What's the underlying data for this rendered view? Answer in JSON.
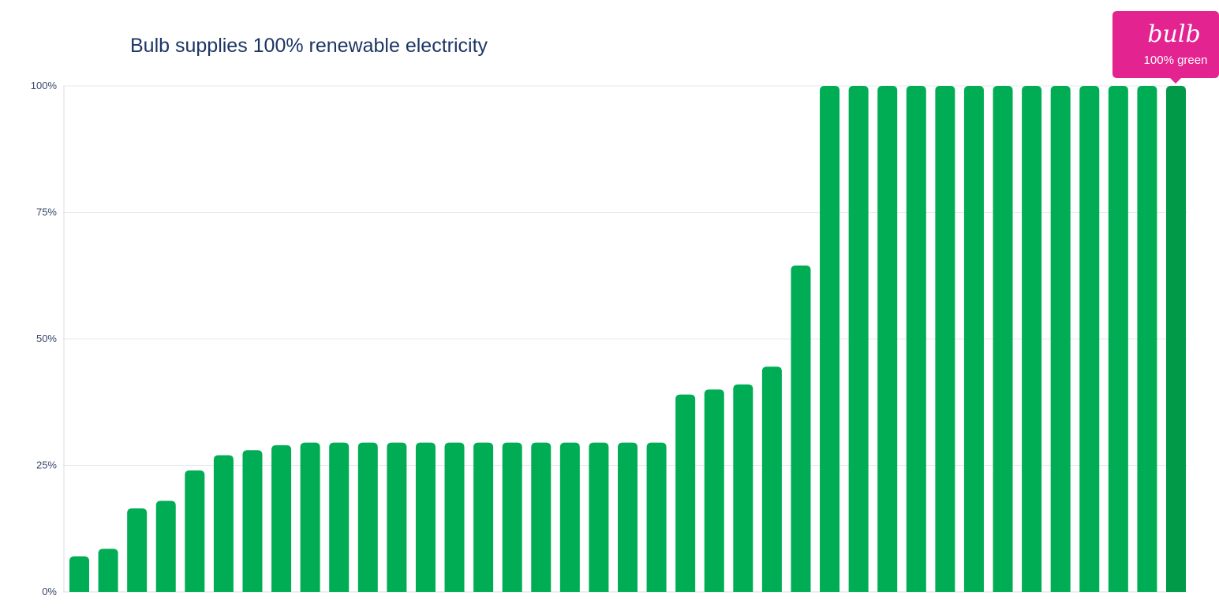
{
  "chart_data": {
    "type": "bar",
    "title": "Bulb supplies 100% renewable electricity",
    "xlabel": "",
    "ylabel": "",
    "ylim": [
      0,
      100
    ],
    "yticks": [
      {
        "value": 0,
        "label": "0%"
      },
      {
        "value": 25,
        "label": "25%"
      },
      {
        "value": 50,
        "label": "50%"
      },
      {
        "value": 75,
        "label": "75%"
      },
      {
        "value": 100,
        "label": "100%"
      }
    ],
    "grid": true,
    "values": [
      7,
      8.5,
      16.5,
      18,
      24,
      27,
      28,
      29,
      29.5,
      29.5,
      29.5,
      29.5,
      29.5,
      29.5,
      29.5,
      29.5,
      29.5,
      29.5,
      29.5,
      29.5,
      29.5,
      39,
      40,
      41,
      44.5,
      64.5,
      100,
      100,
      100,
      100,
      100,
      100,
      100,
      100,
      100,
      100,
      100,
      100,
      100
    ],
    "highlight_index": 38,
    "colors": {
      "bar": "#00ad54",
      "highlight_bar": "#009a49"
    },
    "annotation": {
      "logo": "bulb",
      "text": "100% green",
      "color": "#e3238f"
    }
  }
}
